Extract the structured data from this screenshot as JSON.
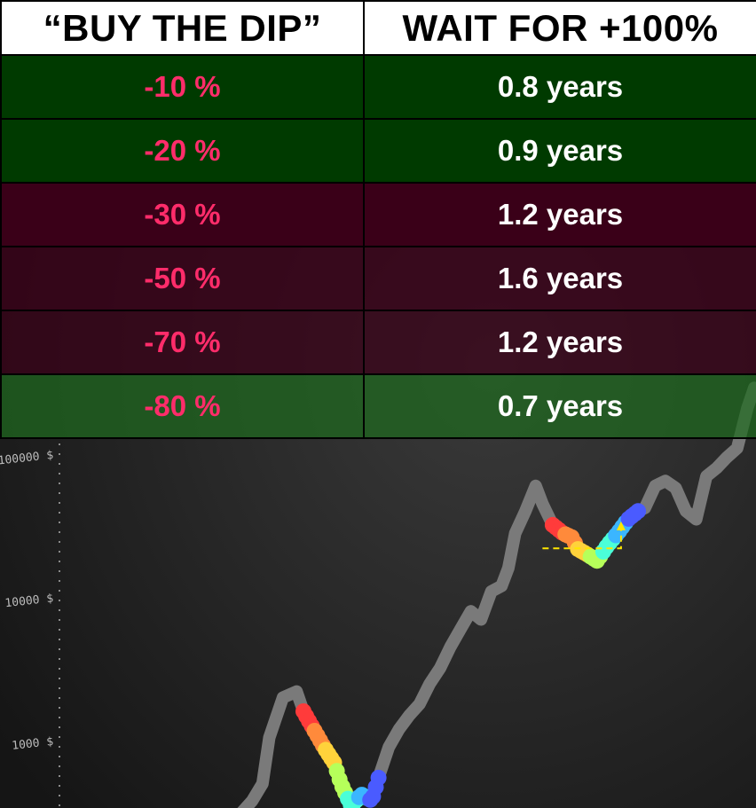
{
  "table": {
    "headers": [
      "“BUY THE DIP”",
      "WAIT FOR +100%"
    ],
    "rows": [
      {
        "dip": "-10 %",
        "wait": "0.8 years",
        "color": "#003a00",
        "alpha": 1.0
      },
      {
        "dip": "-20 %",
        "wait": "0.9 years",
        "color": "#003a00",
        "alpha": 1.0
      },
      {
        "dip": "-30 %",
        "wait": "1.2 years",
        "color": "#3a0018",
        "alpha": 1.0
      },
      {
        "dip": "-50 %",
        "wait": "1.6 years",
        "color": "#3a0018",
        "alpha": 0.8
      },
      {
        "dip": "-70 %",
        "wait": "1.2 years",
        "color": "#3a0018",
        "alpha": 0.72
      },
      {
        "dip": "-80 %",
        "wait": "0.7 years",
        "color": "#1f6a1f",
        "alpha": 0.72
      }
    ]
  },
  "chart_data": {
    "type": "line",
    "yscale": "log",
    "y_ticks": [
      "1000 $",
      "10000 $",
      "100000 $"
    ],
    "background": "#1c1c1c",
    "line_color": "#7a7a7a",
    "annotation_color": "#ffe600",
    "x": [
      0,
      0.5,
      0.8,
      1,
      1.4,
      1.8,
      2,
      2.3,
      2.6,
      2.9,
      3.1,
      3.4,
      3.7,
      4,
      4.2,
      4.5,
      4.8,
      5.1,
      5.4,
      5.7,
      6,
      6.3,
      6.6,
      6.9,
      7.2,
      7.5,
      7.8,
      8,
      8.2,
      8.5,
      8.8,
      9,
      9.3,
      9.6,
      9.9,
      10,
      10.3,
      10.6,
      10.9,
      11.2,
      11.5,
      11.8,
      12,
      12.3,
      12.6,
      12.9,
      13.2,
      13.5,
      13.8,
      14.1,
      14.4,
      14.7,
      15,
      15.2
    ],
    "y": [
      280,
      380,
      500,
      1050,
      2000,
      2200,
      1600,
      1200,
      900,
      700,
      500,
      350,
      420,
      380,
      550,
      900,
      1200,
      1500,
      1800,
      2500,
      3200,
      4500,
      6000,
      8000,
      7000,
      11000,
      12000,
      16000,
      28000,
      40000,
      60000,
      45000,
      32000,
      28000,
      26000,
      22000,
      20000,
      18000,
      23000,
      28000,
      35000,
      40000,
      42000,
      60000,
      65000,
      58000,
      40000,
      35000,
      70000,
      80000,
      95000,
      110000,
      210000,
      290000
    ],
    "dip_segments": [
      {
        "from_x": 2,
        "to_x": 4.2
      },
      {
        "from_x": 9.3,
        "to_x": 11.8
      }
    ]
  }
}
